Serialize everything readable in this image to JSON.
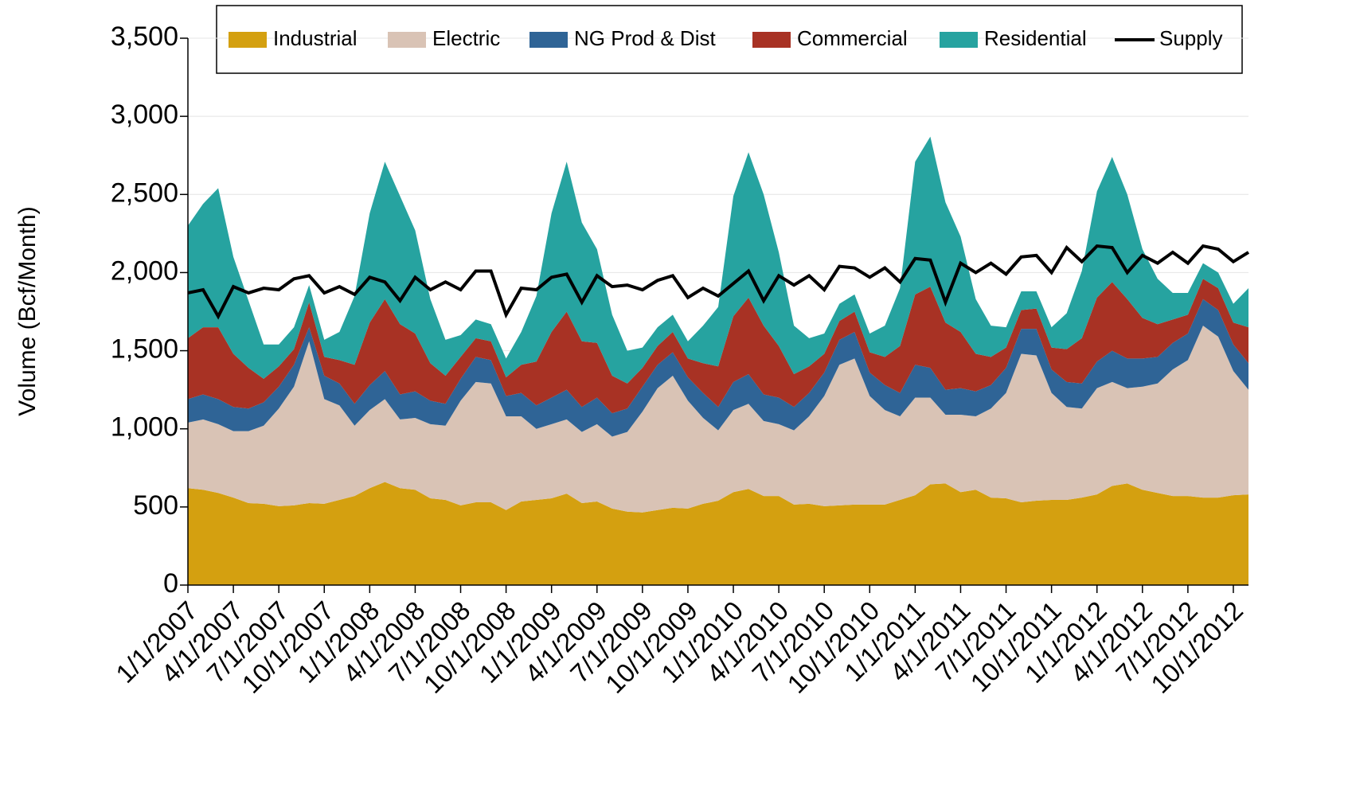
{
  "chart_data": {
    "type": "area",
    "stacked": true,
    "y_label": "Volume (Bcf/Month)",
    "ylim": [
      0,
      3500
    ],
    "yticks": [
      0,
      500,
      {
        "value": 1000,
        "label": "1,000"
      },
      {
        "value": 1500,
        "label": "1,500"
      },
      {
        "value": 2000,
        "label": "2,000"
      },
      {
        "value": 2500,
        "label": "2,500"
      },
      {
        "value": 3000,
        "label": "3,000"
      },
      {
        "value": 3500,
        "label": "3,500"
      }
    ],
    "grid": true,
    "legend": "top",
    "categories": [
      "1/1/2007",
      null,
      null,
      "4/1/2007",
      null,
      null,
      "7/1/2007",
      null,
      null,
      "10/1/2007",
      null,
      null,
      "1/1/2008",
      null,
      null,
      "4/1/2008",
      null,
      null,
      "7/1/2008",
      null,
      null,
      "10/1/2008",
      null,
      null,
      "1/1/2009",
      null,
      null,
      "4/1/2009",
      null,
      null,
      "7/1/2009",
      null,
      null,
      "10/1/2009",
      null,
      null,
      "1/1/2010",
      null,
      null,
      "4/1/2010",
      null,
      null,
      "7/1/2010",
      null,
      null,
      "10/1/2010",
      null,
      null,
      "1/1/2011",
      null,
      null,
      "4/1/2011",
      null,
      null,
      "7/1/2011",
      null,
      null,
      "10/1/2011",
      null,
      null,
      "1/1/2012",
      null,
      null,
      "4/1/2012",
      null,
      null,
      "7/1/2012",
      null,
      null,
      "10/1/2012",
      null
    ],
    "series": [
      {
        "name": "Industrial",
        "type": "area",
        "color": "#d4a010",
        "values": [
          620,
          610,
          590,
          560,
          525,
          520,
          505,
          510,
          525,
          520,
          545,
          570,
          620,
          660,
          620,
          610,
          555,
          545,
          510,
          530,
          530,
          480,
          535,
          545,
          555,
          585,
          525,
          535,
          490,
          470,
          465,
          480,
          495,
          490,
          520,
          540,
          595,
          615,
          570,
          570,
          515,
          520,
          505,
          510,
          515,
          515,
          515,
          545,
          575,
          645,
          650,
          595,
          610,
          560,
          555,
          530,
          540,
          545,
          545,
          560,
          580,
          635,
          650,
          610,
          590,
          570,
          570,
          560,
          560,
          575,
          580
        ]
      },
      {
        "name": "Electric",
        "type": "area",
        "color": "#d9c3b5",
        "values": [
          420,
          450,
          440,
          425,
          460,
          500,
          625,
          760,
          1035,
          670,
          605,
          450,
          500,
          530,
          440,
          460,
          475,
          475,
          670,
          770,
          760,
          600,
          545,
          455,
          475,
          475,
          455,
          495,
          460,
          510,
          645,
          780,
          845,
          690,
          550,
          450,
          525,
          545,
          480,
          460,
          475,
          560,
          705,
          900,
          935,
          695,
          605,
          535,
          625,
          555,
          440,
          495,
          470,
          570,
          675,
          950,
          930,
          685,
          595,
          570,
          680,
          665,
          610,
          660,
          700,
          810,
          870,
          1100,
          1030,
          795,
          670
        ]
      },
      {
        "name": "NG Prod & Dist",
        "type": "area",
        "color": "#2f6496",
        "values": [
          150,
          160,
          160,
          155,
          145,
          150,
          140,
          140,
          90,
          150,
          140,
          140,
          160,
          180,
          160,
          170,
          150,
          140,
          140,
          160,
          150,
          130,
          150,
          150,
          170,
          190,
          160,
          170,
          150,
          150,
          160,
          150,
          150,
          150,
          160,
          150,
          180,
          190,
          170,
          170,
          150,
          150,
          150,
          160,
          170,
          150,
          160,
          150,
          210,
          190,
          160,
          170,
          160,
          150,
          160,
          160,
          170,
          150,
          160,
          160,
          170,
          200,
          190,
          180,
          170,
          170,
          170,
          170,
          170,
          170,
          170
        ]
      },
      {
        "name": "Commercial",
        "type": "area",
        "color": "#a83224",
        "values": [
          390,
          430,
          460,
          340,
          260,
          150,
          130,
          100,
          160,
          120,
          150,
          250,
          400,
          460,
          450,
          370,
          240,
          180,
          140,
          120,
          120,
          120,
          180,
          280,
          420,
          500,
          420,
          350,
          240,
          160,
          120,
          120,
          130,
          120,
          190,
          260,
          420,
          490,
          440,
          330,
          210,
          170,
          120,
          120,
          130,
          130,
          180,
          300,
          450,
          520,
          430,
          360,
          240,
          180,
          130,
          120,
          130,
          140,
          210,
          290,
          410,
          440,
          380,
          260,
          210,
          150,
          120,
          130,
          140,
          140,
          230
        ]
      },
      {
        "name": "Residential",
        "type": "area",
        "color": "#26a3a0",
        "values": [
          720,
          790,
          890,
          620,
          430,
          220,
          140,
          140,
          110,
          110,
          180,
          440,
          700,
          880,
          820,
          660,
          410,
          230,
          140,
          120,
          110,
          120,
          210,
          420,
          760,
          960,
          760,
          600,
          390,
          210,
          130,
          120,
          110,
          110,
          240,
          380,
          770,
          930,
          840,
          600,
          310,
          180,
          130,
          110,
          110,
          120,
          200,
          370,
          850,
          960,
          770,
          610,
          350,
          200,
          130,
          120,
          110,
          130,
          230,
          430,
          680,
          800,
          670,
          440,
          290,
          170,
          140,
          100,
          100,
          120,
          250
        ]
      },
      {
        "name": "Supply",
        "type": "line",
        "color": "#000000",
        "values": [
          1870,
          1890,
          1720,
          1910,
          1870,
          1900,
          1890,
          1960,
          1980,
          1870,
          1910,
          1860,
          1970,
          1940,
          1820,
          1970,
          1890,
          1940,
          1890,
          2010,
          2010,
          1730,
          1900,
          1890,
          1970,
          1990,
          1810,
          1980,
          1910,
          1920,
          1890,
          1950,
          1980,
          1840,
          1900,
          1850,
          1930,
          2010,
          1820,
          1980,
          1920,
          1980,
          1890,
          2040,
          2030,
          1970,
          2030,
          1940,
          2090,
          2080,
          1810,
          2060,
          2000,
          2060,
          1990,
          2100,
          2110,
          2000,
          2160,
          2070,
          2170,
          2160,
          2000,
          2110,
          2060,
          2130,
          2060,
          2170,
          2150,
          2070,
          2130
        ]
      }
    ]
  }
}
